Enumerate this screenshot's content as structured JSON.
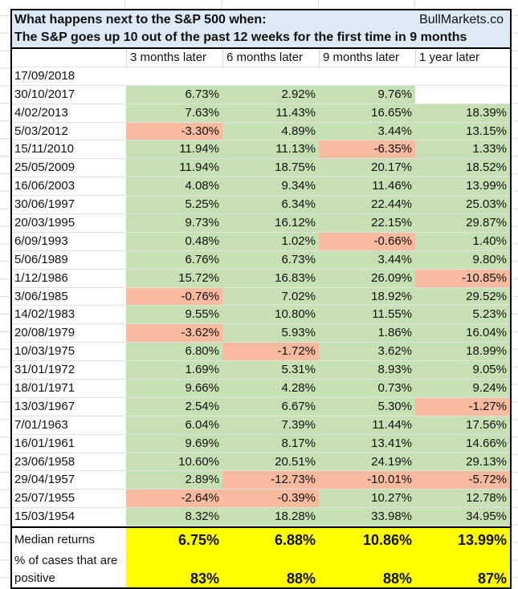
{
  "title": {
    "line1": "What happens next to the S&P 500 when:",
    "line2": "The S&P goes up 10 out of the past 12 weeks for the first time in 9 months",
    "brand": "BullMarkets.co"
  },
  "columns": [
    "3 months later",
    "6 months later",
    "9 months later",
    "1 year later"
  ],
  "rows": [
    {
      "date": "17/09/2018",
      "values": [
        "",
        "",
        "",
        ""
      ]
    },
    {
      "date": "30/10/2017",
      "values": [
        "6.73%",
        "2.92%",
        "9.76%",
        ""
      ]
    },
    {
      "date": "4/02/2013",
      "values": [
        "7.63%",
        "11.43%",
        "16.65%",
        "18.39%"
      ]
    },
    {
      "date": "5/03/2012",
      "values": [
        "-3.30%",
        "4.89%",
        "3.44%",
        "13.15%"
      ]
    },
    {
      "date": "15/11/2010",
      "values": [
        "11.94%",
        "11.13%",
        "-6.35%",
        "1.33%"
      ]
    },
    {
      "date": "25/05/2009",
      "values": [
        "11.94%",
        "18.75%",
        "20.17%",
        "18.52%"
      ]
    },
    {
      "date": "16/06/2003",
      "values": [
        "4.08%",
        "9.34%",
        "11.46%",
        "13.99%"
      ]
    },
    {
      "date": "30/06/1997",
      "values": [
        "5.25%",
        "6.34%",
        "22.44%",
        "25.03%"
      ]
    },
    {
      "date": "20/03/1995",
      "values": [
        "9.73%",
        "16.12%",
        "22.15%",
        "29.87%"
      ]
    },
    {
      "date": "6/09/1993",
      "values": [
        "0.48%",
        "1.02%",
        "-0.66%",
        "1.40%"
      ]
    },
    {
      "date": "5/06/1989",
      "values": [
        "6.76%",
        "6.73%",
        "3.44%",
        "9.80%"
      ]
    },
    {
      "date": "1/12/1986",
      "values": [
        "15.72%",
        "16.83%",
        "26.09%",
        "-10.85%"
      ]
    },
    {
      "date": "3/06/1985",
      "values": [
        "-0.76%",
        "7.02%",
        "18.92%",
        "29.52%"
      ]
    },
    {
      "date": "14/02/1983",
      "values": [
        "9.55%",
        "10.80%",
        "11.55%",
        "5.23%"
      ]
    },
    {
      "date": "20/08/1979",
      "values": [
        "-3.62%",
        "5.93%",
        "1.86%",
        "16.04%"
      ]
    },
    {
      "date": "10/03/1975",
      "values": [
        "6.80%",
        "-1.72%",
        "3.62%",
        "18.99%"
      ]
    },
    {
      "date": "31/01/1972",
      "values": [
        "1.69%",
        "5.31%",
        "8.93%",
        "9.05%"
      ]
    },
    {
      "date": "18/01/1971",
      "values": [
        "9.66%",
        "4.28%",
        "0.73%",
        "9.24%"
      ]
    },
    {
      "date": "13/03/1967",
      "values": [
        "2.54%",
        "6.67%",
        "5.30%",
        "-1.27%"
      ]
    },
    {
      "date": "7/01/1963",
      "values": [
        "6.04%",
        "7.39%",
        "11.44%",
        "17.56%"
      ]
    },
    {
      "date": "16/01/1961",
      "values": [
        "9.69%",
        "8.17%",
        "13.41%",
        "14.66%"
      ]
    },
    {
      "date": "23/06/1958",
      "values": [
        "10.60%",
        "20.51%",
        "24.19%",
        "29.13%"
      ]
    },
    {
      "date": "29/04/1957",
      "values": [
        "2.89%",
        "-12.73%",
        "-10.01%",
        "-5.72%"
      ]
    },
    {
      "date": "25/07/1955",
      "values": [
        "-2.64%",
        "-0.39%",
        "10.27%",
        "12.78%"
      ]
    },
    {
      "date": "15/03/1954",
      "values": [
        "8.32%",
        "18.28%",
        "33.98%",
        "34.95%"
      ]
    }
  ],
  "summary": {
    "median_label": "Median returns",
    "median": [
      "6.75%",
      "6.88%",
      "10.86%",
      "13.99%"
    ],
    "positive_label_1": "% of cases that are",
    "positive_label_2": "positive",
    "positive": [
      "83%",
      "88%",
      "88%",
      "87%"
    ]
  },
  "colors": {
    "positive": "#c6e0b4",
    "negative": "#f8bba0",
    "summary": "#ffff00",
    "title_bg": "#dde9f5"
  }
}
